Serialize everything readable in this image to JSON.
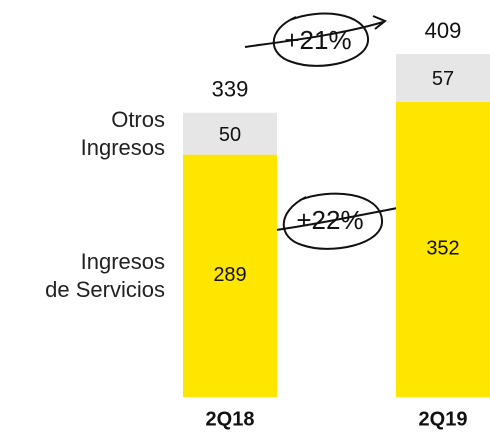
{
  "chart_data": {
    "type": "stacked_bar",
    "categories": [
      "2Q18",
      "2Q19"
    ],
    "series": [
      {
        "name": "Ingresos\nde Servicios",
        "color": "#ffe600",
        "values": [
          289,
          352
        ]
      },
      {
        "name": "Otros\nIngresos",
        "color": "#e6e6e6",
        "values": [
          50,
          57
        ]
      }
    ],
    "totals": [
      339,
      409
    ],
    "annotations": [
      "+21%",
      "+22%"
    ]
  }
}
